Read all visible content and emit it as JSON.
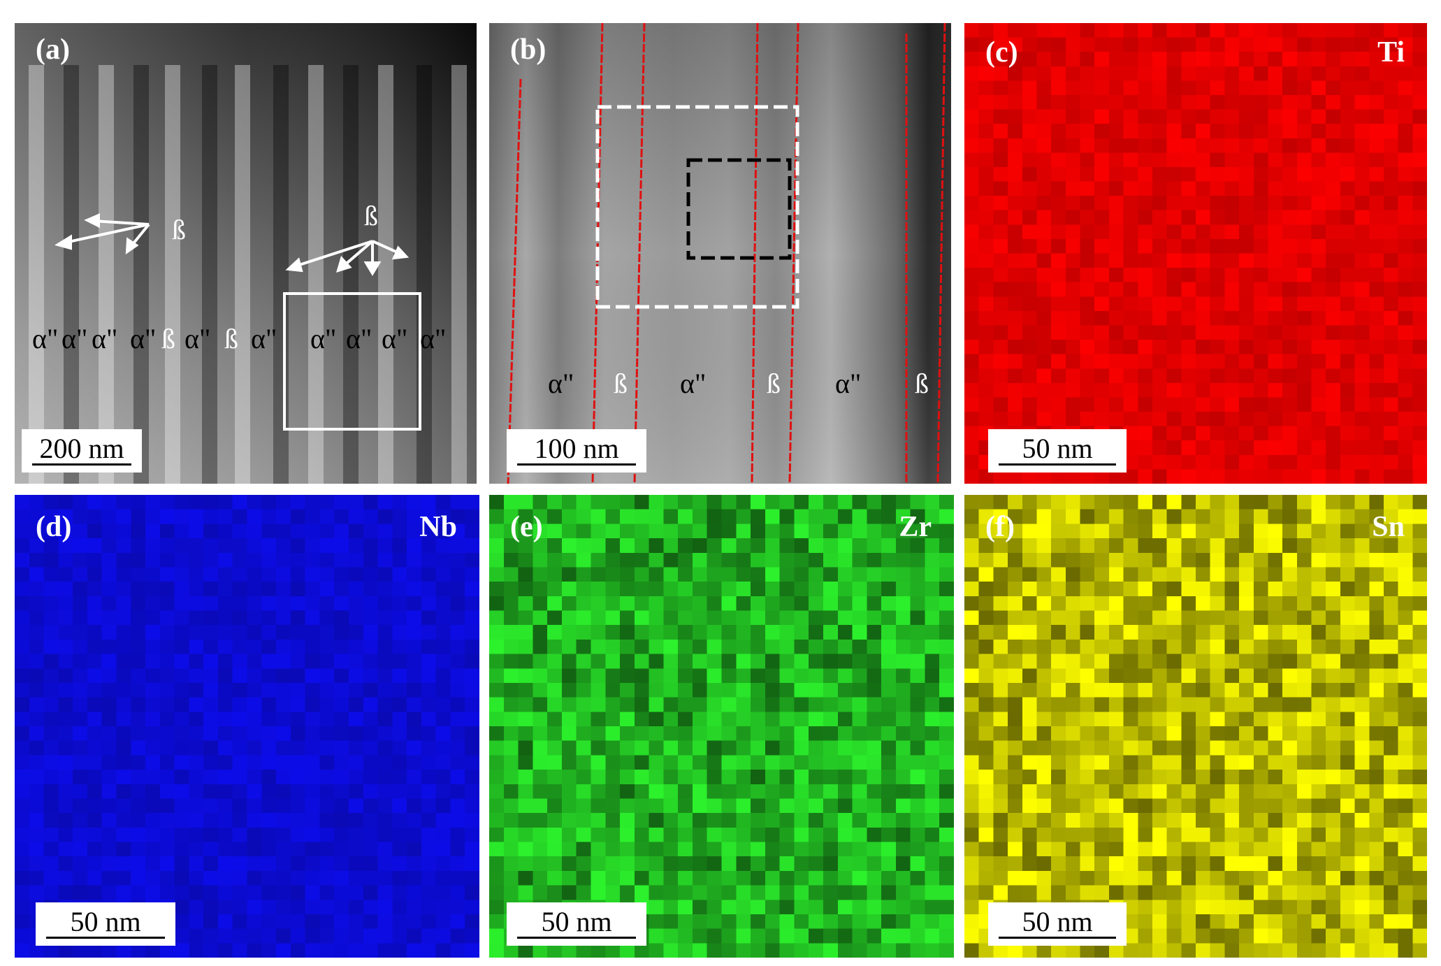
{
  "panels": {
    "a": {
      "label": "(a)",
      "scale": "200 nm",
      "beta_markers": [
        "ß",
        "ß"
      ],
      "phase_labels": [
        "α\"",
        "α\"",
        "α\"",
        "α\"",
        "ß",
        "α\"",
        "ß",
        "α\"",
        "α\"",
        "α\"",
        "α\"",
        "α\""
      ]
    },
    "b": {
      "label": "(b)",
      "scale": "100 nm",
      "phase_labels": [
        "α\"",
        "ß",
        "α\"",
        "ß",
        "α\"",
        "ß"
      ]
    },
    "c": {
      "label": "(c)",
      "element": "Ti",
      "scale": "50 nm",
      "color": "#e00000"
    },
    "d": {
      "label": "(d)",
      "element": "Nb",
      "scale": "50 nm",
      "color": "#0b0bd0"
    },
    "e": {
      "label": "(e)",
      "element": "Zr",
      "scale": "50 nm",
      "color": "#1faa1f"
    },
    "f": {
      "label": "(f)",
      "element": "Sn",
      "scale": "50 nm",
      "color": "#b8b800"
    }
  }
}
